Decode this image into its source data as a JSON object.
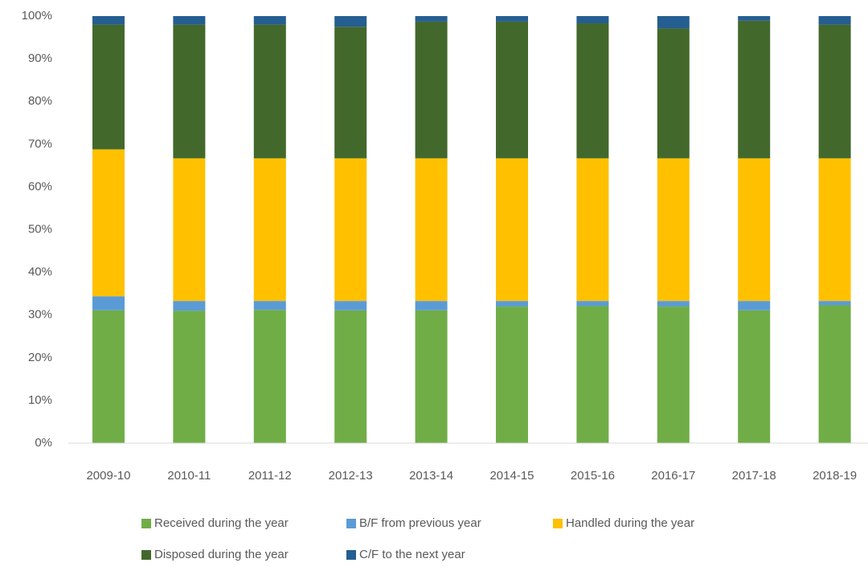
{
  "chart_data": {
    "type": "stacked_bar",
    "categories": [
      "2009-10",
      "2010-11",
      "2011-12",
      "2012-13",
      "2013-14",
      "2014-15",
      "2015-16",
      "2016-17",
      "2017-18",
      "2018-19"
    ],
    "series": [
      {
        "name": "Received during the year",
        "color": "#70ad47",
        "values": [
          31.1,
          31.0,
          31.2,
          31.1,
          31.1,
          32.0,
          32.1,
          32.0,
          31.1,
          32.3
        ]
      },
      {
        "name": "B/F from previous year",
        "color": "#5b9bd5",
        "values": [
          3.3,
          2.3,
          2.1,
          2.2,
          2.2,
          1.3,
          1.2,
          1.3,
          2.2,
          1.0
        ]
      },
      {
        "name": "Handled during the year",
        "color": "#ffc000",
        "values": [
          34.4,
          33.4,
          33.4,
          33.4,
          33.4,
          33.4,
          33.4,
          33.4,
          33.4,
          33.4
        ]
      },
      {
        "name": "Disposed during the year",
        "color": "#43682b",
        "values": [
          29.2,
          31.3,
          31.3,
          30.8,
          32.0,
          32.0,
          31.6,
          30.4,
          32.2,
          31.3
        ]
      },
      {
        "name": "C/F to the next year",
        "color": "#255e91",
        "values": [
          2.0,
          2.0,
          2.0,
          2.5,
          1.3,
          1.3,
          1.7,
          2.9,
          1.1,
          2.0
        ]
      }
    ],
    "ylim": [
      0,
      100
    ],
    "yticks": [
      {
        "value": 0,
        "label": "0%"
      },
      {
        "value": 10,
        "label": "10%"
      },
      {
        "value": 20,
        "label": "20%"
      },
      {
        "value": 30,
        "label": "30%"
      },
      {
        "value": 40,
        "label": "40%"
      },
      {
        "value": 50,
        "label": "50%"
      },
      {
        "value": 60,
        "label": "60%"
      },
      {
        "value": 70,
        "label": "70%"
      },
      {
        "value": 80,
        "label": "80%"
      },
      {
        "value": 90,
        "label": "90%"
      },
      {
        "value": 100,
        "label": "100%"
      }
    ],
    "grid": false
  }
}
